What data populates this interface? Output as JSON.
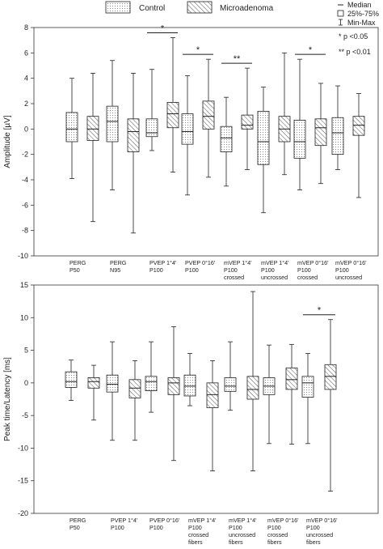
{
  "legend": {
    "control_label": "Control",
    "micro_label": "Microadenoma",
    "median_label": "Median",
    "box_label": "25%-75%",
    "whisker_label": "Min-Max",
    "sig1_label": "* p <0.05",
    "sig2_label": "** p <0.01"
  },
  "chart_data": [
    {
      "type": "box",
      "ylabel": "Amplitude [µV]",
      "ylim": [
        -10,
        8
      ],
      "yticks": [
        8,
        6,
        4,
        2,
        0,
        -2,
        -4,
        -6,
        -8,
        -10
      ],
      "categories": [
        [
          "PERG",
          "P50"
        ],
        [
          "PERG",
          "N95"
        ],
        [
          "PVEP 1°4'",
          "P100"
        ],
        [
          "PVEP 0°16'",
          "P100"
        ],
        [
          "mVEP 1°4'",
          "P100",
          "crossed"
        ],
        [
          "mVEP 1°4'",
          "P100",
          "uncrossed"
        ],
        [
          "mVEP 0°16'",
          "P100",
          "crossed"
        ],
        [
          "mVEP 0°16'",
          "P100",
          "uncrossed"
        ]
      ],
      "series": [
        {
          "name": "Control",
          "boxes": [
            {
              "min": -3.9,
              "q1": -1.0,
              "median": 0.0,
              "q3": 1.3,
              "max": 4.0
            },
            {
              "min": -4.8,
              "q1": -1.0,
              "median": 0.6,
              "q3": 1.8,
              "max": 5.4
            },
            {
              "min": -1.7,
              "q1": -0.6,
              "median": -0.3,
              "q3": 0.8,
              "max": 4.7
            },
            {
              "min": -5.2,
              "q1": -1.2,
              "median": -0.2,
              "q3": 1.2,
              "max": 4.2
            },
            {
              "min": -4.5,
              "q1": -1.8,
              "median": -0.7,
              "q3": 0.2,
              "max": 2.5
            },
            {
              "min": -6.6,
              "q1": -2.8,
              "median": -1.0,
              "q3": 1.4,
              "max": 3.3
            },
            {
              "min": -4.8,
              "q1": -2.3,
              "median": -1.0,
              "q3": 0.7,
              "max": 5.5
            },
            {
              "min": -3.2,
              "q1": -2.0,
              "median": -0.3,
              "q3": 0.9,
              "max": 3.4
            }
          ]
        },
        {
          "name": "Microadenoma",
          "boxes": [
            {
              "min": -7.3,
              "q1": -0.9,
              "median": 0.0,
              "q3": 1.0,
              "max": 4.4
            },
            {
              "min": -8.2,
              "q1": -1.8,
              "median": -0.2,
              "q3": 0.8,
              "max": 4.4
            },
            {
              "min": -3.4,
              "q1": 0.1,
              "median": 1.2,
              "q3": 2.1,
              "max": 7.2
            },
            {
              "min": -3.8,
              "q1": 0.0,
              "median": 1.0,
              "q3": 2.2,
              "max": 5.5
            },
            {
              "min": -3.2,
              "q1": 0.0,
              "median": 0.3,
              "q3": 1.1,
              "max": 4.8
            },
            {
              "min": -3.6,
              "q1": -1.0,
              "median": 0.0,
              "q3": 1.0,
              "max": 6.0
            },
            {
              "min": -4.3,
              "q1": -1.3,
              "median": 0.1,
              "q3": 0.8,
              "max": 3.6
            },
            {
              "min": -5.4,
              "q1": -0.5,
              "median": 0.3,
              "q3": 1.0,
              "max": 2.8
            }
          ]
        }
      ],
      "significance": [
        {
          "category": 2,
          "label": "*"
        },
        {
          "category": 3,
          "label": "*"
        },
        {
          "category": 4,
          "label": "**"
        },
        {
          "category": 6,
          "label": "*"
        }
      ]
    },
    {
      "type": "box",
      "ylabel": "Peak time/Latency [ms]",
      "ylim": [
        -20,
        15
      ],
      "yticks": [
        15,
        10,
        5,
        0,
        -5,
        -10,
        -15,
        -20
      ],
      "categories": [
        [
          "PERG",
          "P50"
        ],
        [
          "PVEP 1°4'",
          "P100"
        ],
        [
          "PVEP 0°16'",
          "P100"
        ],
        [
          "mVEP 1°4'",
          "P100",
          "crossed",
          "fibers"
        ],
        [
          "mVEP 1°4'",
          "P100",
          "uncrossed",
          "fibers"
        ],
        [
          "mVEP 0°16'",
          "P100",
          "crossed",
          "fibers"
        ],
        [
          "mVEP 0°16'",
          "P100",
          "uncrossed",
          "fibers"
        ]
      ],
      "series": [
        {
          "name": "Control",
          "boxes": [
            {
              "min": -2.7,
              "q1": -0.7,
              "median": 0.2,
              "q3": 1.7,
              "max": 3.5
            },
            {
              "min": -8.8,
              "q1": -1.4,
              "median": -0.2,
              "q3": 1.2,
              "max": 6.3
            },
            {
              "min": -4.5,
              "q1": -1.2,
              "median": 0.2,
              "q3": 1.0,
              "max": 6.3
            },
            {
              "min": -3.5,
              "q1": -2.0,
              "median": -0.5,
              "q3": 1.2,
              "max": 4.5
            },
            {
              "min": -4.2,
              "q1": -1.3,
              "median": -0.5,
              "q3": 0.8,
              "max": 6.3
            },
            {
              "min": -9.3,
              "q1": -1.8,
              "median": -0.5,
              "q3": 0.8,
              "max": 5.8
            },
            {
              "min": -9.3,
              "q1": -2.2,
              "median": 0.0,
              "q3": 1.0,
              "max": 4.5
            }
          ]
        },
        {
          "name": "Microadenoma",
          "boxes": [
            {
              "min": -5.7,
              "q1": -0.8,
              "median": 0.2,
              "q3": 0.8,
              "max": 2.7
            },
            {
              "min": -8.8,
              "q1": -2.3,
              "median": -0.8,
              "q3": 0.5,
              "max": 3.4
            },
            {
              "min": -11.9,
              "q1": -1.8,
              "median": 0.0,
              "q3": 0.8,
              "max": 8.6
            },
            {
              "min": -13.5,
              "q1": -3.8,
              "median": -1.8,
              "q3": 0.0,
              "max": 3.4
            },
            {
              "min": -13.5,
              "q1": -2.5,
              "median": -1.0,
              "q3": 1.0,
              "max": 14.0
            },
            {
              "min": -9.4,
              "q1": -1.0,
              "median": 0.5,
              "q3": 2.3,
              "max": 5.9
            },
            {
              "min": -16.6,
              "q1": -1.0,
              "median": 1.0,
              "q3": 2.8,
              "max": 9.7
            }
          ]
        }
      ],
      "significance": [
        {
          "category": 6,
          "label": "*"
        }
      ]
    }
  ]
}
